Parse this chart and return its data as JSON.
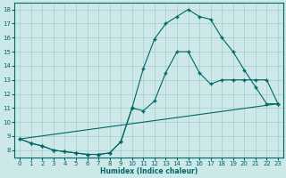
{
  "xlabel": "Humidex (Indice chaleur)",
  "background_color": "#cce8e8",
  "grid_color": "#aacccc",
  "line_color": "#006666",
  "xlim": [
    -0.5,
    23.5
  ],
  "ylim": [
    7.5,
    18.5
  ],
  "xticks": [
    0,
    1,
    2,
    3,
    4,
    5,
    6,
    7,
    8,
    9,
    10,
    11,
    12,
    13,
    14,
    15,
    16,
    17,
    18,
    19,
    20,
    21,
    22,
    23
  ],
  "yticks": [
    8,
    9,
    10,
    11,
    12,
    13,
    14,
    15,
    16,
    17,
    18
  ],
  "line1_x": [
    0,
    1,
    2,
    3,
    4,
    5,
    6,
    7,
    8,
    9,
    10,
    11,
    12,
    13,
    14,
    15,
    16,
    17,
    18,
    19,
    20,
    21,
    22,
    23
  ],
  "line1_y": [
    8.8,
    8.5,
    8.3,
    8.0,
    7.9,
    7.8,
    7.7,
    7.7,
    7.8,
    8.6,
    11.0,
    10.8,
    11.5,
    13.5,
    15.0,
    15.0,
    13.5,
    12.7,
    13.0,
    13.0,
    13.0,
    13.0,
    13.0,
    11.3
  ],
  "line2_x": [
    0,
    1,
    2,
    3,
    4,
    5,
    6,
    7,
    8,
    9,
    10,
    11,
    12,
    13,
    14,
    15,
    16,
    17,
    18,
    19,
    20,
    21,
    22,
    23
  ],
  "line2_y": [
    8.8,
    8.5,
    8.3,
    8.0,
    7.9,
    7.8,
    7.7,
    7.7,
    7.8,
    8.6,
    11.0,
    13.8,
    15.9,
    17.0,
    17.5,
    18.0,
    17.5,
    17.3,
    16.0,
    15.0,
    13.7,
    12.5,
    11.3,
    11.3
  ],
  "line3_x": [
    0,
    23
  ],
  "line3_y": [
    8.8,
    11.3
  ]
}
